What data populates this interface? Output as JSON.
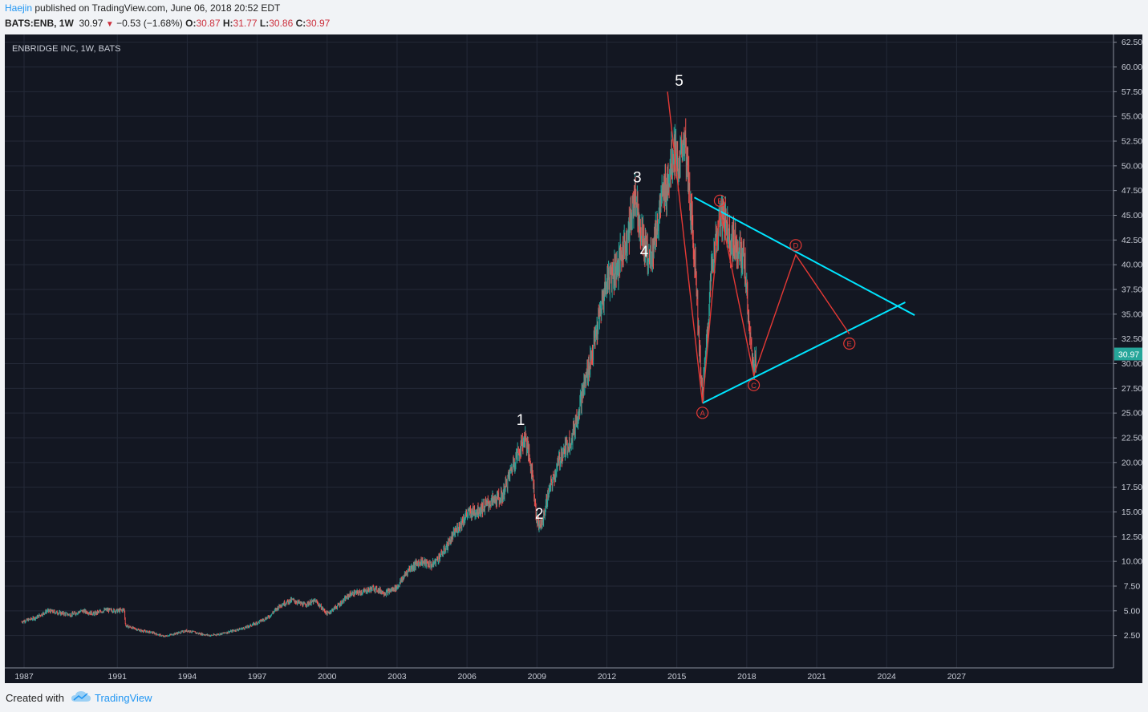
{
  "header": {
    "author": "Haejin",
    "published_text": " published on TradingView.com, June 06, 2018 20:52 EDT",
    "symbol_label": "BATS:ENB, 1W",
    "last": "30.97",
    "change": "−0.53 (−1.68%)",
    "open_label": "O:",
    "open": "30.87",
    "high_label": "H:",
    "high": "31.77",
    "low_label": "L:",
    "low": "30.86",
    "close_label": "C:",
    "close": "30.97"
  },
  "footer": {
    "created_with": "Created with",
    "brand": "TradingView"
  },
  "colors": {
    "up": "#26a69a",
    "down": "#ef5350",
    "wave": "#e53935",
    "trend": "#00e5ff",
    "price_tag": "#26a69a"
  },
  "chart_data": {
    "type": "line",
    "title": "ENBRIDGE INC, 1W, BATS",
    "ylim": [
      0,
      64
    ],
    "y_ticks": [
      "62.50",
      "60.00",
      "57.50",
      "55.00",
      "52.50",
      "50.00",
      "47.50",
      "45.00",
      "42.50",
      "40.00",
      "37.50",
      "35.00",
      "32.50",
      "30.00",
      "27.50",
      "25.00",
      "22.50",
      "20.00",
      "17.50",
      "15.00",
      "12.50",
      "10.00",
      "7.50",
      "5.00",
      "2.50"
    ],
    "x_ticks": [
      "1987",
      "1991",
      "1994",
      "1997",
      "2000",
      "2003",
      "2006",
      "2009",
      "2012",
      "2015",
      "2018",
      "2021",
      "2024",
      "2027"
    ],
    "xlim": [
      1986.85,
      2033.0
    ],
    "current_price": "30.97",
    "price_series": [
      [
        1986.9,
        3.9
      ],
      [
        1987.5,
        4.3
      ],
      [
        1988.0,
        5.0
      ],
      [
        1988.5,
        4.8
      ],
      [
        1989.0,
        4.6
      ],
      [
        1989.5,
        5.0
      ],
      [
        1990.0,
        4.7
      ],
      [
        1990.5,
        5.1
      ],
      [
        1991.0,
        5.0
      ],
      [
        1991.3,
        5.1
      ],
      [
        1991.35,
        3.5
      ],
      [
        1992.0,
        3.0
      ],
      [
        1992.5,
        2.8
      ],
      [
        1993.0,
        2.4
      ],
      [
        1993.5,
        2.7
      ],
      [
        1994.0,
        3.0
      ],
      [
        1994.5,
        2.7
      ],
      [
        1995.0,
        2.5
      ],
      [
        1995.5,
        2.7
      ],
      [
        1996.0,
        3.0
      ],
      [
        1996.5,
        3.3
      ],
      [
        1997.0,
        3.8
      ],
      [
        1997.5,
        4.4
      ],
      [
        1998.0,
        5.6
      ],
      [
        1998.5,
        6.1
      ],
      [
        1999.0,
        5.6
      ],
      [
        1999.5,
        6.0
      ],
      [
        2000.0,
        4.7
      ],
      [
        2000.5,
        5.6
      ],
      [
        2001.0,
        6.7
      ],
      [
        2001.5,
        6.9
      ],
      [
        2002.0,
        7.3
      ],
      [
        2002.5,
        6.8
      ],
      [
        2003.0,
        7.4
      ],
      [
        2003.5,
        9.2
      ],
      [
        2004.0,
        10.0
      ],
      [
        2004.5,
        9.6
      ],
      [
        2005.0,
        11.0
      ],
      [
        2005.5,
        13.0
      ],
      [
        2006.0,
        14.8
      ],
      [
        2006.5,
        15.2
      ],
      [
        2007.0,
        16.0
      ],
      [
        2007.5,
        16.5
      ],
      [
        2008.0,
        20.0
      ],
      [
        2008.5,
        22.6
      ],
      [
        2008.8,
        19.0
      ],
      [
        2009.0,
        14.0
      ],
      [
        2009.2,
        13.6
      ],
      [
        2009.5,
        17.0
      ],
      [
        2010.0,
        20.5
      ],
      [
        2010.5,
        22.5
      ],
      [
        2011.0,
        27.5
      ],
      [
        2011.5,
        32.5
      ],
      [
        2012.0,
        38.5
      ],
      [
        2012.5,
        40.0
      ],
      [
        2013.0,
        44.0
      ],
      [
        2013.2,
        47.5
      ],
      [
        2013.5,
        43.0
      ],
      [
        2013.8,
        40.5
      ],
      [
        2014.0,
        42.0
      ],
      [
        2014.3,
        46.0
      ],
      [
        2014.6,
        48.5
      ],
      [
        2014.9,
        52.0
      ],
      [
        2015.1,
        49.0
      ],
      [
        2015.3,
        53.5
      ],
      [
        2015.5,
        48.0
      ],
      [
        2015.8,
        40.0
      ],
      [
        2016.0,
        30.0
      ],
      [
        2016.1,
        26.5
      ],
      [
        2016.3,
        33.0
      ],
      [
        2016.5,
        40.0
      ],
      [
        2016.8,
        44.0
      ],
      [
        2017.0,
        45.0
      ],
      [
        2017.3,
        42.5
      ],
      [
        2017.6,
        42.0
      ],
      [
        2017.9,
        40.0
      ],
      [
        2018.1,
        34.0
      ],
      [
        2018.25,
        29.5
      ],
      [
        2018.4,
        31.0
      ]
    ],
    "wave_labels": [
      {
        "label": "1",
        "x": 2008.3,
        "y": 23.0
      },
      {
        "label": "2",
        "x": 2009.1,
        "y": 13.5
      },
      {
        "label": "3",
        "x": 2013.3,
        "y": 47.5
      },
      {
        "label": "4",
        "x": 2013.6,
        "y": 40.0
      },
      {
        "label": "5",
        "x": 2015.1,
        "y": 57.3
      }
    ],
    "abc_points": [
      {
        "label": "A",
        "x": 2016.1,
        "y": 26.0
      },
      {
        "label": "B",
        "x": 2016.85,
        "y": 45.5
      },
      {
        "label": "C",
        "x": 2018.3,
        "y": 28.8
      },
      {
        "label": "D",
        "x": 2020.1,
        "y": 41.0
      },
      {
        "label": "E",
        "x": 2022.4,
        "y": 33.0
      }
    ],
    "top_line": [
      [
        2014.6,
        57.5
      ],
      [
        2015.1,
        53.5
      ]
    ],
    "trendlines": [
      {
        "from": [
          2015.75,
          46.8
        ],
        "to": [
          2025.2,
          34.9
        ]
      },
      {
        "from": [
          2016.1,
          26.0
        ],
        "to": [
          2024.8,
          36.2
        ]
      }
    ]
  }
}
